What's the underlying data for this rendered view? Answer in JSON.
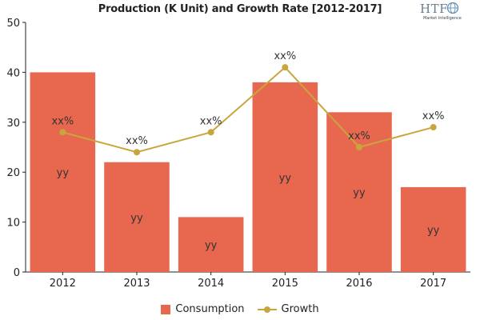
{
  "title": "Production (K Unit) and Growth Rate [2012-2017]",
  "logo": {
    "name": "HTF",
    "tagline": "Market Intelligence"
  },
  "colors": {
    "consumption": "#e8684f",
    "growth": "#c9a53e",
    "axis": "#222222"
  },
  "chart_data": {
    "type": "bar",
    "title": "Production (K Unit) and Growth Rate [2012-2017]",
    "categories": [
      "2012",
      "2013",
      "2014",
      "2015",
      "2016",
      "2017"
    ],
    "ylim": [
      0,
      50
    ],
    "yticks": [
      0,
      10,
      20,
      30,
      40,
      50
    ],
    "xlabel": "",
    "ylabel": "",
    "grid": false,
    "legend_position": "bottom",
    "series": [
      {
        "name": "Consumption",
        "type": "bar",
        "values": [
          40,
          22,
          11,
          38,
          32,
          17
        ],
        "labels": [
          "yy",
          "yy",
          "yy",
          "yy",
          "yy",
          "yy"
        ]
      },
      {
        "name": "Growth",
        "type": "line",
        "values": [
          28,
          24,
          28,
          41,
          25,
          29
        ],
        "labels": [
          "xx%",
          "xx%",
          "xx%",
          "xx%",
          "xx%",
          "xx%"
        ]
      }
    ]
  }
}
